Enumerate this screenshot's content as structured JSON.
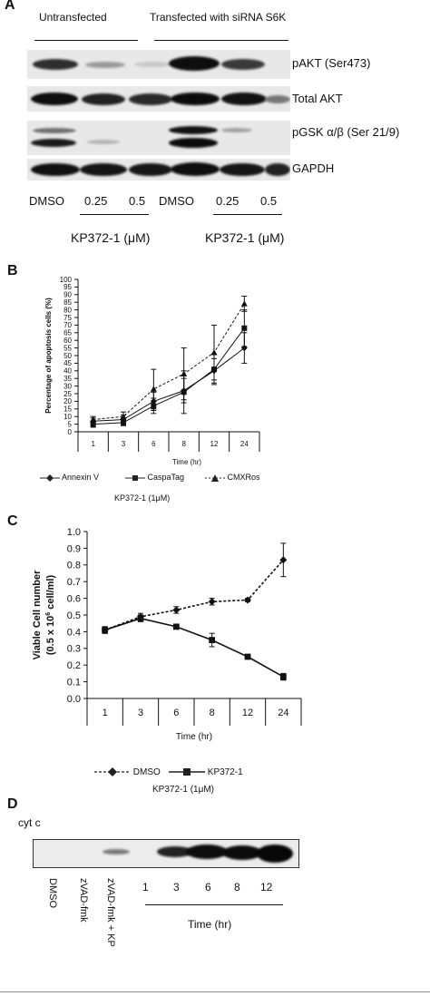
{
  "panel_a": {
    "label": "A",
    "groups": [
      "Untransfected",
      "Transfected with siRNA S6K"
    ],
    "rows": [
      "pAKT (Ser473)",
      "Total AKT",
      "pGSK α/β (Ser 21/9)",
      "GAPDH"
    ],
    "lanes": [
      "DMSO",
      "0.25",
      "0.5",
      "DMSO",
      "0.25",
      "0.5"
    ],
    "treatment_labels": [
      "KP372-1 (μM)",
      "KP372-1 (μM)"
    ]
  },
  "panel_b": {
    "label": "B",
    "treatment": "KP372-1 (1μM)",
    "legend": [
      "Annexin V",
      "CaspaTag",
      "CMXRos"
    ]
  },
  "panel_c": {
    "label": "C",
    "treatment": "KP372-1 (1μM)",
    "legend": [
      "DMSO",
      "KP372-1"
    ]
  },
  "panel_d": {
    "label": "D",
    "blot_label": "cyt c",
    "lanes": [
      "DMSO",
      "zVAD-fmk",
      "zVAD-fmk + KP"
    ],
    "times": [
      "1",
      "3",
      "6",
      "8",
      "12"
    ],
    "time_label": "Time (hr)"
  },
  "chart_data": [
    {
      "type": "line",
      "title": "",
      "xlabel": "Time (hr)",
      "ylabel": "Percentage of apoptosis cells (%)",
      "categories": [
        "1",
        "3",
        "6",
        "8",
        "12",
        "24"
      ],
      "ylim": [
        0,
        100
      ],
      "yticks": [
        0,
        5,
        10,
        15,
        20,
        25,
        30,
        35,
        40,
        45,
        50,
        55,
        60,
        65,
        70,
        75,
        80,
        85,
        90,
        95,
        100
      ],
      "series": [
        {
          "name": "Annexin V",
          "values": [
            7,
            8,
            20,
            27,
            40,
            55
          ],
          "errors": [
            2,
            3,
            6,
            8,
            8,
            10
          ],
          "marker": "diamond",
          "dash": "solid"
        },
        {
          "name": "CaspaTag",
          "values": [
            5,
            6,
            17,
            26,
            41,
            68
          ],
          "errors": [
            2,
            2,
            5,
            14,
            10,
            12
          ],
          "marker": "square",
          "dash": "solid"
        },
        {
          "name": "CMXRos",
          "values": [
            8,
            10,
            28,
            38,
            52,
            84
          ],
          "errors": [
            2,
            3,
            13,
            17,
            18,
            5
          ],
          "marker": "triangle",
          "dash": "dash"
        }
      ],
      "grid": false,
      "legend_position": "bottom"
    },
    {
      "type": "line",
      "title": "",
      "xlabel": "Time (hr)",
      "ylabel": "Viable Cell number (0.5 x 10 6 cell/ml)",
      "ylabel_lines": [
        "Viable Cell number",
        "(0.5 x 10",
        "6",
        " cell/ml)"
      ],
      "categories": [
        "1",
        "3",
        "6",
        "8",
        "12",
        "24"
      ],
      "ylim": [
        0,
        1.0
      ],
      "yticks": [
        "0.0",
        "0.1",
        "0.2",
        "0.3",
        "0.4",
        "0.5",
        "0.6",
        "0.7",
        "0.8",
        "0.9",
        "1.0"
      ],
      "series": [
        {
          "name": "DMSO",
          "values": [
            0.41,
            0.49,
            0.53,
            0.58,
            0.59,
            0.83
          ],
          "errors": [
            0.02,
            0.02,
            0.02,
            0.02,
            0.01,
            0.1
          ],
          "marker": "diamond",
          "dash": "dash"
        },
        {
          "name": "KP372-1",
          "values": [
            0.41,
            0.48,
            0.43,
            0.35,
            0.25,
            0.13
          ],
          "errors": [
            0.02,
            0.02,
            0.01,
            0.04,
            0.01,
            0.02
          ],
          "marker": "square",
          "dash": "solid"
        }
      ],
      "grid": false,
      "legend_position": "bottom"
    }
  ]
}
